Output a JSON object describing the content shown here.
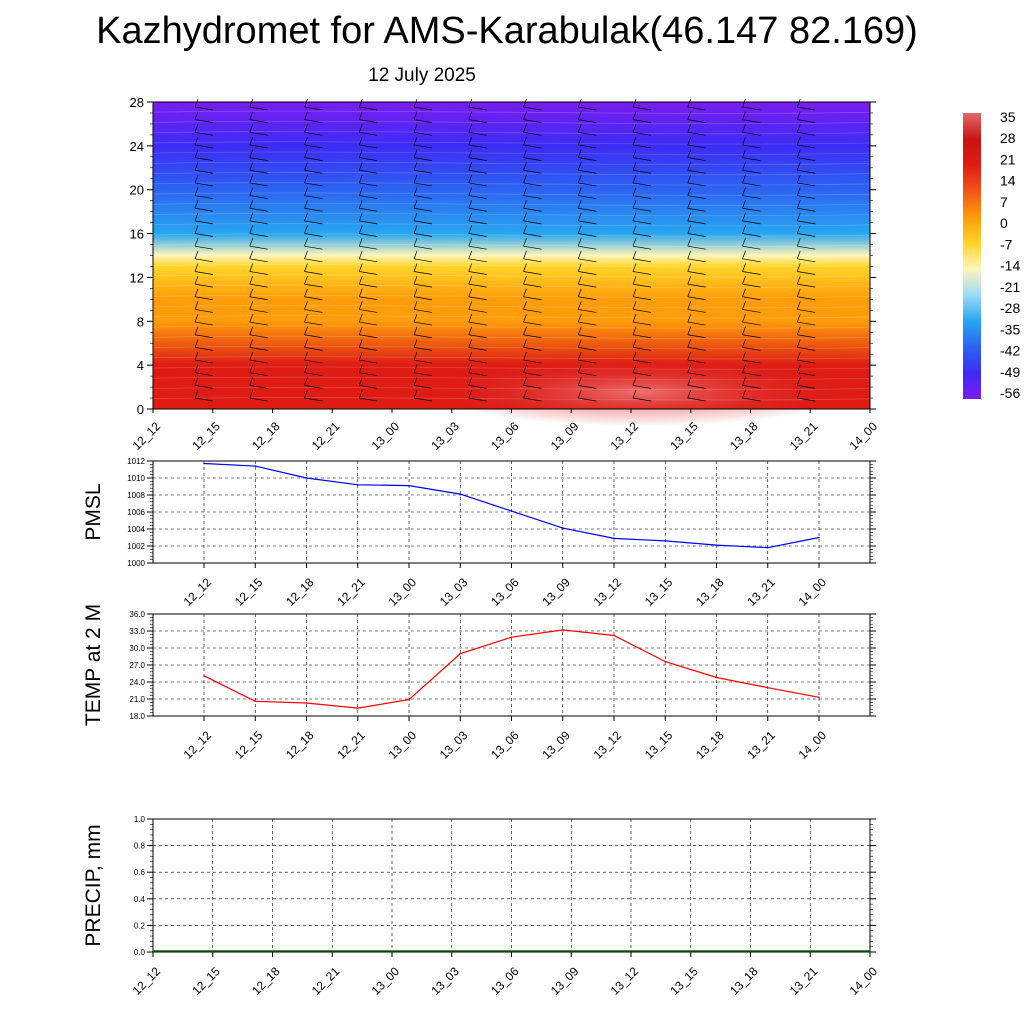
{
  "title": "Kazhydromet for AMS-Karabulak(46.147 82.169)",
  "subtitle": "12 July 2025",
  "time_labels": [
    "12_12",
    "12_15",
    "12_18",
    "12_21",
    "13_00",
    "13_03",
    "13_06",
    "13_09",
    "13_12",
    "13_15",
    "13_18",
    "13_21",
    "14_00"
  ],
  "chart_data": [
    {
      "type": "heatmap",
      "title": "",
      "variable": "air temperature cross-section with wind barbs",
      "x": [
        "12_12",
        "12_15",
        "12_18",
        "12_21",
        "13_00",
        "13_03",
        "13_06",
        "13_09",
        "13_12",
        "13_15",
        "13_18",
        "13_21",
        "14_00"
      ],
      "y_ticks": [
        0,
        4,
        8,
        12,
        16,
        20,
        24,
        28
      ],
      "ylim": [
        0,
        28
      ],
      "colorbar": {
        "labels": [
          "35",
          "28",
          "21",
          "14",
          "7",
          "0",
          "-7",
          "-14",
          "-21",
          "-28",
          "-35",
          "-42",
          "-49",
          "-56"
        ],
        "range": [
          -60,
          40
        ],
        "colors": [
          "#7a1cf0",
          "#3c2cf6",
          "#2c63f2",
          "#28a6f0",
          "#9bdcf6",
          "#fff5b8",
          "#ffd428",
          "#ff9c0a",
          "#f4551a",
          "#de1c14",
          "#c81414",
          "#e06a6a"
        ]
      },
      "temperature_profile": [
        {
          "level": 0,
          "value": 22
        },
        {
          "level": 4,
          "value": 18
        },
        {
          "level": 8,
          "value": 8
        },
        {
          "level": 10,
          "value": 0
        },
        {
          "level": 13,
          "value": -10
        },
        {
          "level": 14,
          "value": -18
        },
        {
          "level": 16,
          "value": -30
        },
        {
          "level": 20,
          "value": -45
        },
        {
          "level": 24,
          "value": -52
        },
        {
          "level": 28,
          "value": -58
        }
      ]
    },
    {
      "type": "line",
      "ylabel": "PMSL",
      "xlabel": "",
      "categories": [
        "12_12",
        "12_15",
        "12_18",
        "12_21",
        "13_00",
        "13_03",
        "13_06",
        "13_09",
        "13_12",
        "13_15",
        "13_18",
        "13_21",
        "14_00"
      ],
      "yticks": [
        "1000",
        "1002",
        "1004",
        "1006",
        "1008",
        "1010",
        "1012"
      ],
      "ylim": [
        1000,
        1012
      ],
      "color": "#0000ff",
      "values": [
        1011.7,
        1011.4,
        1010.0,
        1009.2,
        1009.1,
        1008.1,
        1006.1,
        1004.1,
        1002.9,
        1002.6,
        1002.1,
        1001.8,
        1003.0
      ]
    },
    {
      "type": "line",
      "ylabel": "TEMP at 2 M",
      "xlabel": "",
      "categories": [
        "12_12",
        "12_15",
        "12_18",
        "12_21",
        "13_00",
        "13_03",
        "13_06",
        "13_09",
        "13_12",
        "13_15",
        "13_18",
        "13_21",
        "14_00"
      ],
      "yticks": [
        "18.0",
        "21.0",
        "24.0",
        "27.0",
        "30.0",
        "33.0",
        "36.0"
      ],
      "ylim": [
        18,
        36
      ],
      "color": "#ff0000",
      "values": [
        25.1,
        20.6,
        20.3,
        19.4,
        20.9,
        29.0,
        31.9,
        33.2,
        32.2,
        27.6,
        24.8,
        23.0,
        21.3
      ]
    },
    {
      "type": "bar",
      "ylabel": "PRECIP, mm",
      "xlabel": "",
      "categories": [
        "12_12",
        "12_15",
        "12_18",
        "12_21",
        "13_00",
        "13_03",
        "13_06",
        "13_09",
        "13_12",
        "13_15",
        "13_18",
        "13_21",
        "14_00"
      ],
      "yticks": [
        "0.0",
        "0.2",
        "0.4",
        "0.6",
        "0.8",
        "1.0"
      ],
      "ylim": [
        0,
        1
      ],
      "color": "#006400",
      "values": [
        0,
        0,
        0,
        0,
        0,
        0,
        0,
        0,
        0,
        0,
        0,
        0,
        0
      ]
    }
  ]
}
